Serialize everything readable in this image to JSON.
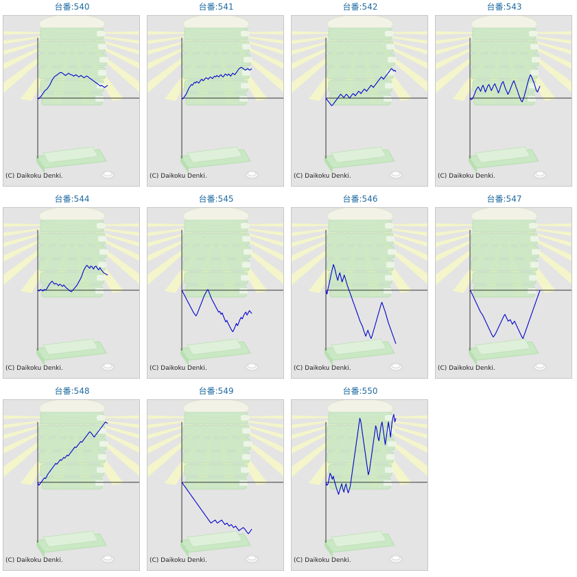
{
  "colors": {
    "title": "#1f6aa0",
    "series": "#0000cc",
    "axis": "#333333",
    "background": "#e4e4e4",
    "border": "#c6c6c6"
  },
  "icons": [
    "sunburst-background",
    "pachinko-machine-illustration",
    "medal-tray-illustration",
    "coin-icon"
  ],
  "chart_data": [
    {
      "type": "line",
      "title": "台番:540",
      "copyright": "(C) Daikoku Denki.",
      "x_axis_position": 0,
      "y": [
        0,
        -1,
        1,
        2,
        4,
        6,
        8,
        10,
        11,
        12,
        14,
        16,
        18,
        21,
        24,
        26,
        28,
        29,
        30,
        31,
        32,
        33,
        34,
        34,
        33,
        32,
        31,
        30,
        31,
        32,
        33,
        32,
        31,
        31,
        30,
        29,
        30,
        31,
        30,
        29,
        28,
        29,
        30,
        29,
        28,
        27,
        28,
        29,
        29,
        28,
        27,
        26,
        25,
        24,
        23,
        22,
        21,
        20,
        19,
        18,
        17,
        16,
        17,
        16,
        15,
        14,
        15,
        16,
        17
      ]
    },
    {
      "type": "line",
      "title": "台番:541",
      "copyright": "(C) Daikoku Denki.",
      "x_axis_position": 0,
      "y": [
        0,
        -1,
        1,
        3,
        5,
        8,
        11,
        14,
        16,
        18,
        17,
        19,
        21,
        20,
        22,
        21,
        20,
        22,
        24,
        25,
        23,
        24,
        26,
        27,
        26,
        25,
        27,
        28,
        27,
        26,
        28,
        29,
        28,
        30,
        29,
        28,
        30,
        31,
        29,
        28,
        30,
        32,
        31,
        30,
        32,
        31,
        29,
        31,
        33,
        32,
        31,
        33,
        35,
        37,
        39,
        40,
        41,
        40,
        39,
        38,
        37,
        38,
        39,
        38,
        37,
        38,
        39
      ]
    },
    {
      "type": "line",
      "title": "台番:542",
      "copyright": "(C) Daikoku Denki.",
      "x_axis_position": 0,
      "y": [
        0,
        -2,
        -4,
        -6,
        -8,
        -10,
        -9,
        -7,
        -5,
        -3,
        -1,
        1,
        3,
        5,
        4,
        2,
        1,
        3,
        5,
        4,
        2,
        0,
        2,
        4,
        6,
        5,
        3,
        5,
        7,
        9,
        8,
        6,
        8,
        10,
        12,
        11,
        9,
        11,
        13,
        15,
        17,
        16,
        14,
        16,
        18,
        20,
        22,
        24,
        26,
        28,
        27,
        25,
        27,
        29,
        31,
        33,
        35,
        37,
        39,
        38,
        36,
        37,
        35
      ]
    },
    {
      "type": "line",
      "title": "台番:543",
      "copyright": "(C) Daikoku Denki.",
      "x_axis_position": 0,
      "y": [
        0,
        -2,
        -1,
        2,
        6,
        10,
        13,
        15,
        12,
        9,
        14,
        17,
        13,
        8,
        12,
        16,
        18,
        14,
        10,
        13,
        17,
        19,
        15,
        11,
        7,
        11,
        16,
        20,
        22,
        17,
        12,
        9,
        5,
        8,
        12,
        16,
        20,
        23,
        19,
        14,
        10,
        5,
        1,
        -3,
        -5,
        -1,
        4,
        10,
        16,
        22,
        27,
        31,
        28,
        24,
        20,
        15,
        10,
        8,
        12,
        16
      ]
    },
    {
      "type": "line",
      "title": "台番:544",
      "copyright": "(C) Daikoku Denki.",
      "x_axis_position": 0,
      "y": [
        0,
        -1,
        1,
        0,
        -1,
        1,
        0,
        2,
        5,
        8,
        10,
        12,
        10,
        8,
        9,
        8,
        6,
        8,
        7,
        5,
        7,
        5,
        3,
        2,
        0,
        -1,
        -2,
        0,
        2,
        4,
        6,
        9,
        12,
        15,
        19,
        24,
        28,
        31,
        33,
        31,
        29,
        32,
        31,
        28,
        31,
        32,
        29,
        27,
        30,
        27,
        25,
        23,
        22,
        21,
        20
      ]
    },
    {
      "type": "line",
      "title": "台番:545",
      "copyright": "(C) Daikoku Denki.",
      "x_axis_position": 0,
      "y": [
        0,
        -3,
        -6,
        -9,
        -12,
        -15,
        -18,
        -21,
        -24,
        -27,
        -30,
        -32,
        -34,
        -31,
        -27,
        -23,
        -19,
        -15,
        -11,
        -7,
        -4,
        -1,
        1,
        -3,
        -7,
        -11,
        -14,
        -17,
        -20,
        -23,
        -26,
        -29,
        -28,
        -32,
        -30,
        -34,
        -38,
        -42,
        -40,
        -44,
        -47,
        -50,
        -53,
        -55,
        -52,
        -48,
        -44,
        -47,
        -43,
        -39,
        -36,
        -38,
        -34,
        -31,
        -29,
        -33,
        -30,
        -27,
        -29,
        -31
      ]
    },
    {
      "type": "line",
      "title": "台番:546",
      "copyright": "(C) Daikoku Denki.",
      "x_axis_position": 0,
      "y": [
        0,
        -5,
        2,
        8,
        15,
        22,
        28,
        34,
        30,
        24,
        18,
        13,
        19,
        23,
        17,
        11,
        15,
        20,
        16,
        11,
        6,
        2,
        -2,
        -6,
        -10,
        -14,
        -18,
        -22,
        -26,
        -30,
        -34,
        -38,
        -42,
        -45,
        -48,
        -53,
        -57,
        -61,
        -57,
        -53,
        -57,
        -61,
        -64,
        -60,
        -55,
        -50,
        -45,
        -40,
        -35,
        -30,
        -25,
        -20,
        -16,
        -20,
        -24,
        -28,
        -33,
        -38,
        -43,
        -47,
        -51,
        -55,
        -59,
        -63,
        -67,
        -71
      ]
    },
    {
      "type": "line",
      "title": "台番:547",
      "copyright": "(C) Daikoku Denki.",
      "x_axis_position": 0,
      "y": [
        0,
        -2,
        -5,
        -8,
        -11,
        -14,
        -17,
        -20,
        -23,
        -26,
        -29,
        -31,
        -33,
        -36,
        -39,
        -42,
        -45,
        -48,
        -51,
        -54,
        -57,
        -60,
        -62,
        -60,
        -58,
        -55,
        -52,
        -49,
        -46,
        -43,
        -40,
        -37,
        -34,
        -32,
        -35,
        -38,
        -41,
        -40,
        -39,
        -42,
        -45,
        -43,
        -41,
        -44,
        -47,
        -50,
        -53,
        -56,
        -59,
        -62,
        -64,
        -60,
        -56,
        -52,
        -48,
        -44,
        -40,
        -36,
        -32,
        -28,
        -24,
        -20,
        -16,
        -12,
        -8,
        -4,
        0
      ]
    },
    {
      "type": "line",
      "title": "台番:548",
      "copyright": "(C) Daikoku Denki.",
      "x_axis_position": 0,
      "y": [
        0,
        -4,
        -2,
        0,
        2,
        4,
        6,
        5,
        8,
        11,
        13,
        15,
        17,
        19,
        21,
        23,
        25,
        24,
        26,
        28,
        30,
        29,
        31,
        33,
        32,
        34,
        36,
        35,
        37,
        39,
        41,
        43,
        45,
        47,
        46,
        48,
        50,
        52,
        54,
        53,
        55,
        57,
        59,
        61,
        63,
        65,
        67,
        66,
        64,
        62,
        60,
        62,
        64,
        66,
        68,
        70,
        72,
        74,
        76,
        78,
        80,
        79,
        78
      ]
    },
    {
      "type": "line",
      "title": "台番:549",
      "copyright": "(C) Daikoku Denki.",
      "x_axis_position": 0,
      "y": [
        0,
        -2,
        -4,
        -6,
        -8,
        -10,
        -12,
        -14,
        -16,
        -18,
        -20,
        -22,
        -24,
        -26,
        -28,
        -30,
        -32,
        -34,
        -36,
        -38,
        -40,
        -42,
        -44,
        -46,
        -48,
        -50,
        -52,
        -54,
        -53,
        -52,
        -51,
        -50,
        -52,
        -54,
        -53,
        -52,
        -51,
        -50,
        -52,
        -54,
        -56,
        -55,
        -54,
        -56,
        -58,
        -57,
        -56,
        -58,
        -60,
        -59,
        -58,
        -60,
        -62,
        -64,
        -63,
        -62,
        -61,
        -60,
        -61,
        -63,
        -65,
        -67,
        -68,
        -66,
        -64,
        -62
      ]
    },
    {
      "type": "line",
      "title": "台番:550",
      "copyright": "(C) Daikoku Denki.",
      "x_axis_position": 0,
      "y": [
        0,
        -4,
        -2,
        5,
        12,
        9,
        4,
        8,
        2,
        -3,
        -8,
        -12,
        -16,
        -11,
        -6,
        -2,
        -9,
        -13,
        -6,
        -2,
        -9,
        -14,
        -10,
        -5,
        5,
        15,
        25,
        35,
        45,
        55,
        65,
        75,
        85,
        80,
        70,
        60,
        50,
        40,
        30,
        20,
        10,
        15,
        25,
        35,
        45,
        55,
        65,
        75,
        70,
        60,
        55,
        65,
        75,
        80,
        70,
        60,
        50,
        60,
        70,
        80,
        70,
        60,
        75,
        85,
        90,
        80,
        85
      ]
    }
  ]
}
